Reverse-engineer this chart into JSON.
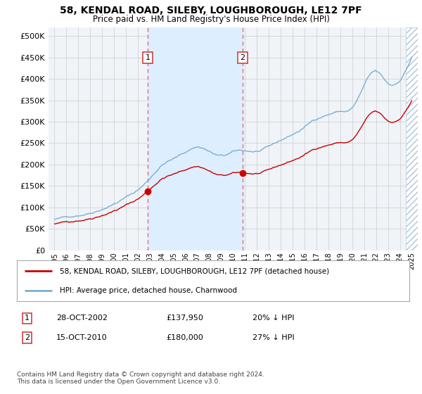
{
  "title": "58, KENDAL ROAD, SILEBY, LOUGHBOROUGH, LE12 7PF",
  "subtitle": "Price paid vs. HM Land Registry's House Price Index (HPI)",
  "sale1_date": "28-OCT-2002",
  "sale1_price": 137950,
  "sale1_year": 2002.83,
  "sale2_date": "15-OCT-2010",
  "sale2_price": 180000,
  "sale2_year": 2010.79,
  "legend_line1": "58, KENDAL ROAD, SILEBY, LOUGHBOROUGH, LE12 7PF (detached house)",
  "legend_line2": "HPI: Average price, detached house, Charnwood",
  "footnote": "Contains HM Land Registry data © Crown copyright and database right 2024.\nThis data is licensed under the Open Government Licence v3.0.",
  "hpi_color": "#7bafd4",
  "price_color": "#cc0000",
  "shaded_color": "#ddeeff",
  "hatch_color": "#c8d8e8",
  "ylim_max": 520000,
  "ylim_min": 0,
  "xlim_min": 1994.5,
  "xlim_max": 2025.5
}
